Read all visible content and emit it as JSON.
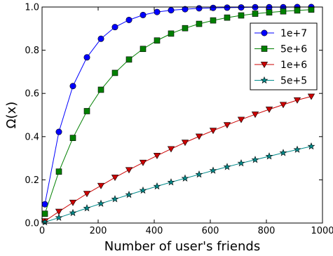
{
  "chart_data": {
    "type": "line",
    "xlabel": "Number of user's friends",
    "ylabel": "Ω(x)",
    "xlim": [
      0,
      1000
    ],
    "ylim": [
      0,
      1.0
    ],
    "xticks": [
      0,
      200,
      400,
      600,
      800,
      1000
    ],
    "yticks": [
      0.0,
      0.2,
      0.4,
      0.6,
      0.8,
      1.0
    ],
    "xtick_labels": [
      "0",
      "200",
      "400",
      "600",
      "800",
      "1000"
    ],
    "ytick_labels": [
      "0.0",
      "0.2",
      "0.4",
      "0.6",
      "0.8",
      "1.0"
    ],
    "grid": false,
    "legend_position": "upper right",
    "x": [
      10,
      60,
      110,
      160,
      210,
      260,
      310,
      360,
      410,
      460,
      510,
      560,
      610,
      660,
      710,
      760,
      810,
      860,
      910,
      960
    ],
    "series": [
      {
        "name": "1e+7",
        "color": "#0000ff",
        "marker": "circle",
        "values": [
          0.087,
          0.422,
          0.634,
          0.767,
          0.853,
          0.907,
          0.94,
          0.963,
          0.977,
          0.985,
          0.99,
          0.994,
          0.996,
          0.997,
          0.998,
          0.999,
          0.999,
          0.999,
          1.0,
          1.0
        ]
      },
      {
        "name": "5e+6",
        "color": "#008000",
        "marker": "square",
        "values": [
          0.043,
          0.238,
          0.394,
          0.518,
          0.617,
          0.695,
          0.757,
          0.806,
          0.845,
          0.877,
          0.902,
          0.922,
          0.938,
          0.951,
          0.961,
          0.969,
          0.975,
          0.98,
          0.984,
          0.988
        ]
      },
      {
        "name": "1e+6",
        "color": "#cc0000",
        "marker": "triangle-down",
        "values": [
          0.009,
          0.053,
          0.095,
          0.136,
          0.173,
          0.211,
          0.246,
          0.28,
          0.312,
          0.343,
          0.373,
          0.401,
          0.428,
          0.454,
          0.479,
          0.503,
          0.526,
          0.548,
          0.569,
          0.586
        ]
      },
      {
        "name": "5e+5",
        "color": "#008b8b",
        "marker": "star",
        "values": [
          0.004,
          0.025,
          0.047,
          0.069,
          0.09,
          0.111,
          0.131,
          0.151,
          0.17,
          0.189,
          0.207,
          0.225,
          0.243,
          0.26,
          0.277,
          0.293,
          0.309,
          0.325,
          0.34,
          0.355
        ]
      }
    ]
  }
}
